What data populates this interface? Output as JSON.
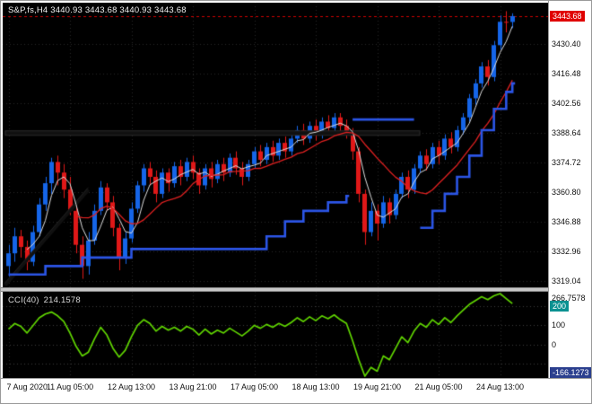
{
  "header": {
    "text": "S&P,fs,H4 3440.93 3443.68 3440.93 3443.68"
  },
  "cci_header": {
    "title": "CCI(40)",
    "value": "214.1578"
  },
  "colors": {
    "bull": "#1565e8",
    "bear": "#e01818",
    "ma_fast": "#dcdcdc",
    "ma_slow": "#e02020",
    "trail": "#2b55e6",
    "cci_line": "#5fd400",
    "grid": "#262626",
    "cci_level": "#3a3a3a",
    "trendline": "#101010",
    "trendline_edge": "#2a2a2a",
    "price_badge_bg": "#e00000",
    "cci_badge_bg": "#0b9191",
    "cci_low_badge_bg": "#2b3f8e",
    "current_price_line": "#cc0000"
  },
  "chart_data": [
    {
      "type": "candlestick",
      "title": "S&P,fs,H4",
      "ylim": [
        3316,
        3450
      ],
      "grid": true,
      "price_axis_labels": [
        "3430.40",
        "3416.48",
        "3402.56",
        "3388.64",
        "3374.72",
        "3360.80",
        "3346.88",
        "3332.96",
        "3319.04"
      ],
      "current_price": 3443.68,
      "current_price_label": "3443.68",
      "time_axis_labels": [
        {
          "text": "7 Aug 2020",
          "bar": 0
        },
        {
          "text": "11 Aug 05:00",
          "bar": 10
        },
        {
          "text": "12 Aug 13:00",
          "bar": 20
        },
        {
          "text": "13 Aug 21:00",
          "bar": 30
        },
        {
          "text": "17 Aug 05:00",
          "bar": 40
        },
        {
          "text": "18 Aug 13:00",
          "bar": 50
        },
        {
          "text": "19 Aug 21:00",
          "bar": 60
        },
        {
          "text": "21 Aug 05:00",
          "bar": 70
        },
        {
          "text": "24 Aug 13:00",
          "bar": 80
        }
      ],
      "candles": [
        [
          3326,
          3336,
          3321,
          3332
        ],
        [
          3332,
          3344,
          3328,
          3340
        ],
        [
          3340,
          3343,
          3330,
          3335
        ],
        [
          3335,
          3338,
          3324,
          3328
        ],
        [
          3328,
          3345,
          3326,
          3342
        ],
        [
          3342,
          3358,
          3340,
          3355
        ],
        [
          3355,
          3368,
          3352,
          3365
        ],
        [
          3365,
          3377,
          3360,
          3375
        ],
        [
          3375,
          3378,
          3364,
          3370
        ],
        [
          3370,
          3374,
          3358,
          3362
        ],
        [
          3362,
          3368,
          3350,
          3352
        ],
        [
          3352,
          3355,
          3332,
          3336
        ],
        [
          3336,
          3340,
          3320,
          3326
        ],
        [
          3326,
          3342,
          3322,
          3338
        ],
        [
          3338,
          3355,
          3336,
          3352
        ],
        [
          3352,
          3366,
          3350,
          3363
        ],
        [
          3363,
          3365,
          3352,
          3356
        ],
        [
          3356,
          3359,
          3340,
          3344
        ],
        [
          3344,
          3346,
          3324,
          3330
        ],
        [
          3330,
          3342,
          3327,
          3339
        ],
        [
          3339,
          3356,
          3337,
          3353
        ],
        [
          3353,
          3366,
          3351,
          3364
        ],
        [
          3364,
          3374,
          3361,
          3372
        ],
        [
          3372,
          3375,
          3364,
          3368
        ],
        [
          3368,
          3371,
          3356,
          3360
        ],
        [
          3360,
          3372,
          3358,
          3370
        ],
        [
          3370,
          3372,
          3361,
          3365
        ],
        [
          3365,
          3375,
          3363,
          3373
        ],
        [
          3373,
          3376,
          3364,
          3368
        ],
        [
          3368,
          3377,
          3366,
          3375
        ],
        [
          3375,
          3378,
          3367,
          3370
        ],
        [
          3370,
          3372,
          3360,
          3364
        ],
        [
          3364,
          3374,
          3362,
          3372
        ],
        [
          3372,
          3375,
          3363,
          3367
        ],
        [
          3367,
          3376,
          3365,
          3374
        ],
        [
          3374,
          3377,
          3366,
          3370
        ],
        [
          3370,
          3379,
          3368,
          3377
        ],
        [
          3377,
          3380,
          3369,
          3372
        ],
        [
          3372,
          3375,
          3364,
          3368
        ],
        [
          3368,
          3376,
          3366,
          3374
        ],
        [
          3374,
          3382,
          3372,
          3380
        ],
        [
          3380,
          3383,
          3373,
          3376
        ],
        [
          3376,
          3384,
          3374,
          3382
        ],
        [
          3382,
          3385,
          3375,
          3378
        ],
        [
          3378,
          3386,
          3376,
          3384
        ],
        [
          3384,
          3387,
          3377,
          3380
        ],
        [
          3380,
          3388,
          3378,
          3386
        ],
        [
          3386,
          3392,
          3384,
          3390
        ],
        [
          3390,
          3393,
          3383,
          3386
        ],
        [
          3386,
          3394,
          3384,
          3392
        ],
        [
          3392,
          3395,
          3385,
          3388
        ],
        [
          3388,
          3396,
          3386,
          3394
        ],
        [
          3394,
          3397,
          3388,
          3391
        ],
        [
          3391,
          3398,
          3389,
          3396
        ],
        [
          3396,
          3398,
          3389,
          3392
        ],
        [
          3392,
          3395,
          3386,
          3389
        ],
        [
          3389,
          3391,
          3376,
          3380
        ],
        [
          3380,
          3382,
          3356,
          3360
        ],
        [
          3360,
          3362,
          3336,
          3342
        ],
        [
          3342,
          3356,
          3340,
          3352
        ],
        [
          3352,
          3355,
          3338,
          3346
        ],
        [
          3346,
          3359,
          3344,
          3356
        ],
        [
          3356,
          3358,
          3346,
          3350
        ],
        [
          3350,
          3362,
          3348,
          3360
        ],
        [
          3360,
          3370,
          3358,
          3368
        ],
        [
          3368,
          3371,
          3358,
          3362
        ],
        [
          3362,
          3374,
          3360,
          3372
        ],
        [
          3372,
          3380,
          3370,
          3378
        ],
        [
          3378,
          3381,
          3371,
          3374
        ],
        [
          3374,
          3384,
          3372,
          3382
        ],
        [
          3382,
          3385,
          3374,
          3378
        ],
        [
          3378,
          3388,
          3376,
          3386
        ],
        [
          3386,
          3389,
          3379,
          3382
        ],
        [
          3382,
          3392,
          3380,
          3390
        ],
        [
          3390,
          3398,
          3388,
          3396
        ],
        [
          3396,
          3407,
          3394,
          3405
        ],
        [
          3405,
          3414,
          3402,
          3412
        ],
        [
          3412,
          3422,
          3410,
          3420
        ],
        [
          3420,
          3423,
          3411,
          3415
        ],
        [
          3415,
          3432,
          3413,
          3430
        ],
        [
          3430,
          3444,
          3428,
          3441
        ],
        [
          3441,
          3446,
          3436,
          3440.93
        ],
        [
          3440.93,
          3445,
          3438,
          3443.68
        ]
      ],
      "overlays": {
        "ma_fast_period": 4,
        "ma_slow_period": 12,
        "trail_segments": [
          {
            "mode": "step",
            "points": [
              [
                0,
                3322
              ],
              [
                6,
                3326
              ],
              [
                12,
                3330
              ],
              [
                20,
                3334
              ],
              [
                42,
                3340
              ],
              [
                45,
                3347
              ],
              [
                48,
                3352
              ],
              [
                52,
                3356
              ],
              [
                55,
                3359
              ]
            ]
          },
          {
            "mode": "line",
            "points": [
              [
                56,
                3395
              ],
              [
                66,
                3395
              ]
            ]
          },
          {
            "mode": "step",
            "points": [
              [
                67,
                3344
              ],
              [
                69,
                3352
              ],
              [
                71,
                3360
              ],
              [
                73,
                3368
              ],
              [
                75,
                3378
              ],
              [
                77,
                3390
              ],
              [
                79,
                3400
              ],
              [
                81,
                3408
              ],
              [
                82,
                3412
              ]
            ]
          }
        ],
        "trendlines": [
          {
            "kind": "hline",
            "price": 3388.6,
            "from_bar": 0,
            "to_bar": 67
          },
          {
            "kind": "segment",
            "points": [
              [
                0,
                3317
              ],
              [
                13,
                3362
              ]
            ]
          }
        ]
      }
    },
    {
      "type": "line",
      "title": "CCI(40)",
      "current_value": 214.1578,
      "ylim": [
        -166.1273,
        266.7578
      ],
      "levels": [
        200,
        100,
        0,
        -100
      ],
      "axis_labels": {
        "max": "266.7578",
        "level_badge": "200",
        "levels_text": [
          "100",
          "0"
        ],
        "min_badge": "-166.1273"
      },
      "values": [
        80,
        110,
        95,
        60,
        100,
        140,
        160,
        170,
        150,
        120,
        60,
        -10,
        -60,
        -40,
        30,
        90,
        50,
        -20,
        -66,
        -30,
        40,
        100,
        130,
        110,
        70,
        95,
        75,
        90,
        70,
        95,
        80,
        50,
        80,
        55,
        75,
        60,
        85,
        65,
        45,
        70,
        100,
        85,
        105,
        90,
        110,
        95,
        115,
        140,
        120,
        145,
        125,
        150,
        135,
        155,
        130,
        110,
        20,
        -80,
        -166.1273,
        -120,
        -140,
        -60,
        -80,
        -20,
        40,
        10,
        70,
        110,
        90,
        130,
        105,
        140,
        115,
        150,
        180,
        210,
        230,
        250,
        235,
        255,
        266.7578,
        240,
        214.1578
      ]
    }
  ]
}
